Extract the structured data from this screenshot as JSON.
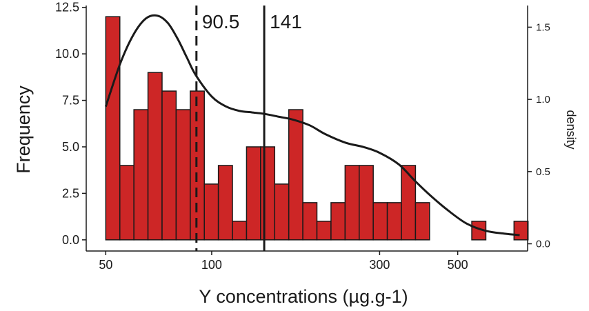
{
  "chart_data": {
    "type": "bar",
    "subtype": "histogram with density curve",
    "title": "",
    "xlabel": "Y concentrations (µg.g-1)",
    "ylabel": "Frequency",
    "ylabel_right": "density",
    "x_scale": "log10",
    "xlim": [
      44,
      790
    ],
    "ylim": [
      -0.6,
      12.6
    ],
    "ylim_right": [
      -0.05,
      1.65
    ],
    "grid": false,
    "bar_color": "#CD2626",
    "bar_edge_color": "#1a1a1a",
    "x_ticks": [
      50,
      100,
      300,
      500
    ],
    "x_tick_labels": [
      "50",
      "100",
      "300",
      "500"
    ],
    "y_ticks": [
      0,
      2.5,
      5,
      7.5,
      10,
      12.5
    ],
    "y_tick_labels": [
      "0.0",
      "2.5",
      "5.0",
      "7.5",
      "10.0",
      "12.5"
    ],
    "y_ticks_right": [
      0,
      0.5,
      1.0,
      1.5
    ],
    "y_tick_labels_right": [
      "0.0",
      "0.5",
      "1.0",
      "1.5"
    ],
    "bins": {
      "log10_start": 1.699,
      "log10_width": 0.04,
      "counts": [
        12,
        4,
        7,
        9,
        8,
        7,
        8,
        3,
        4,
        1,
        5,
        5,
        3,
        7,
        2,
        1,
        2,
        4,
        4,
        2,
        2,
        4,
        2,
        0,
        0,
        0,
        1,
        0,
        0,
        1
      ]
    },
    "density_curve": {
      "x": [
        50,
        55,
        60,
        65,
        70,
        75,
        80,
        85,
        90,
        100,
        110,
        120,
        130,
        141,
        155,
        170,
        190,
        210,
        240,
        270,
        300,
        340,
        380,
        420,
        470,
        530,
        600,
        680,
        750
      ],
      "y": [
        0.95,
        1.25,
        1.45,
        1.56,
        1.58,
        1.53,
        1.42,
        1.29,
        1.17,
        1.02,
        0.95,
        0.92,
        0.91,
        0.9,
        0.88,
        0.86,
        0.82,
        0.76,
        0.7,
        0.67,
        0.63,
        0.55,
        0.43,
        0.33,
        0.23,
        0.14,
        0.09,
        0.07,
        0.06
      ]
    },
    "reference_lines": [
      {
        "x": 90.5,
        "label": "90.5",
        "style": "dashed"
      },
      {
        "x": 141,
        "label": "141",
        "style": "solid"
      }
    ]
  }
}
